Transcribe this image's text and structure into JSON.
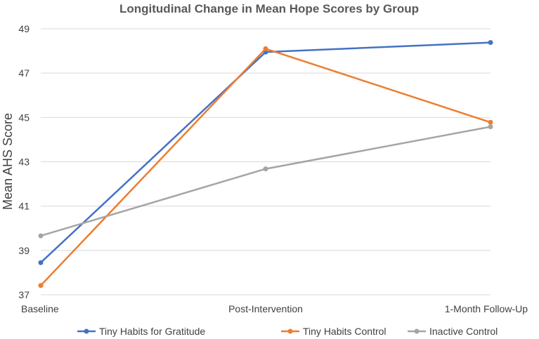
{
  "chart_data": {
    "type": "line",
    "title": "Longitudinal Change in Mean Hope Scores by Group",
    "xlabel": "",
    "ylabel": "Mean AHS Score",
    "categories": [
      "Baseline",
      "Post-Intervention",
      "1-Month Follow-Up"
    ],
    "ylim": [
      37,
      49
    ],
    "yticks": [
      37,
      39,
      41,
      43,
      45,
      47,
      49
    ],
    "grid": true,
    "legend_position": "bottom",
    "series": [
      {
        "name": "Tiny Habits for Gratitude",
        "color": "#4472C4",
        "values": [
          38.45,
          47.95,
          48.38
        ]
      },
      {
        "name": "Tiny Habits Control",
        "color": "#ED7D31",
        "values": [
          37.42,
          48.1,
          44.78
        ]
      },
      {
        "name": "Inactive Control",
        "color": "#A5A5A5",
        "values": [
          39.66,
          42.68,
          44.58
        ]
      }
    ]
  }
}
